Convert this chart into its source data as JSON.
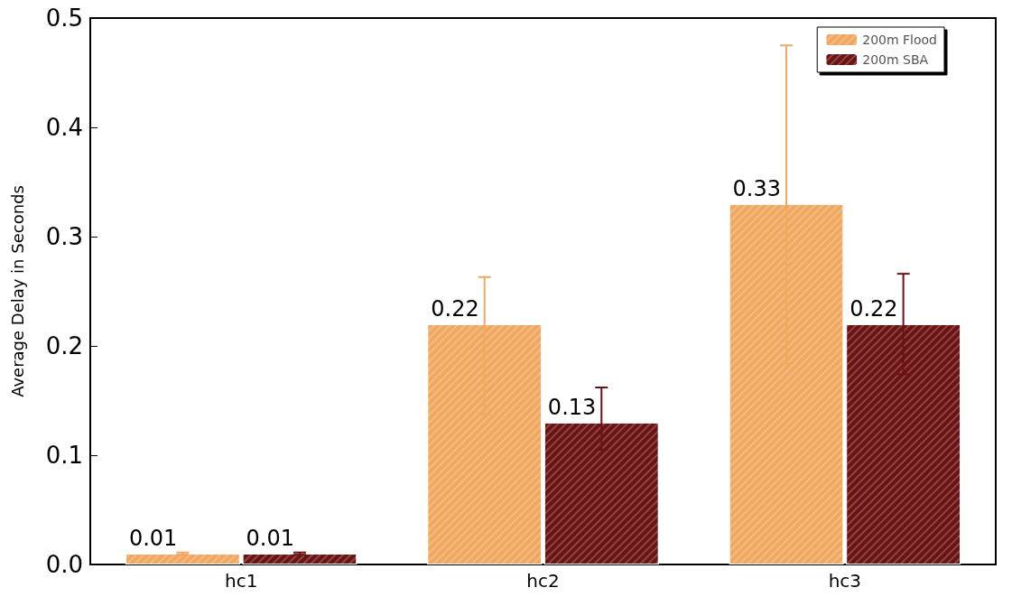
{
  "chart_data": {
    "type": "bar",
    "ylabel": "Average Delay in Seconds",
    "categories": [
      "hc1",
      "hc2",
      "hc3"
    ],
    "series": [
      {
        "name": "200m Flood",
        "color": "#f0a860",
        "values": [
          0.01,
          0.22,
          0.33
        ],
        "errors": [
          [
            0.009,
            0.011
          ],
          [
            0.137,
            0.263
          ],
          [
            0.184,
            0.475
          ]
        ]
      },
      {
        "name": "200m SBA",
        "color": "#6b1212",
        "values": [
          0.01,
          0.13,
          0.22
        ],
        "errors": [
          [
            0.009,
            0.011
          ],
          [
            0.105,
            0.162
          ],
          [
            0.174,
            0.266
          ]
        ]
      }
    ],
    "ylim": [
      0,
      0.5
    ],
    "yticks": [
      {
        "value": 0,
        "label": "0.0"
      },
      0.1,
      0.2,
      0.3,
      0.4,
      0.5
    ],
    "data_labels": true,
    "legend": "top right",
    "grid": false
  }
}
